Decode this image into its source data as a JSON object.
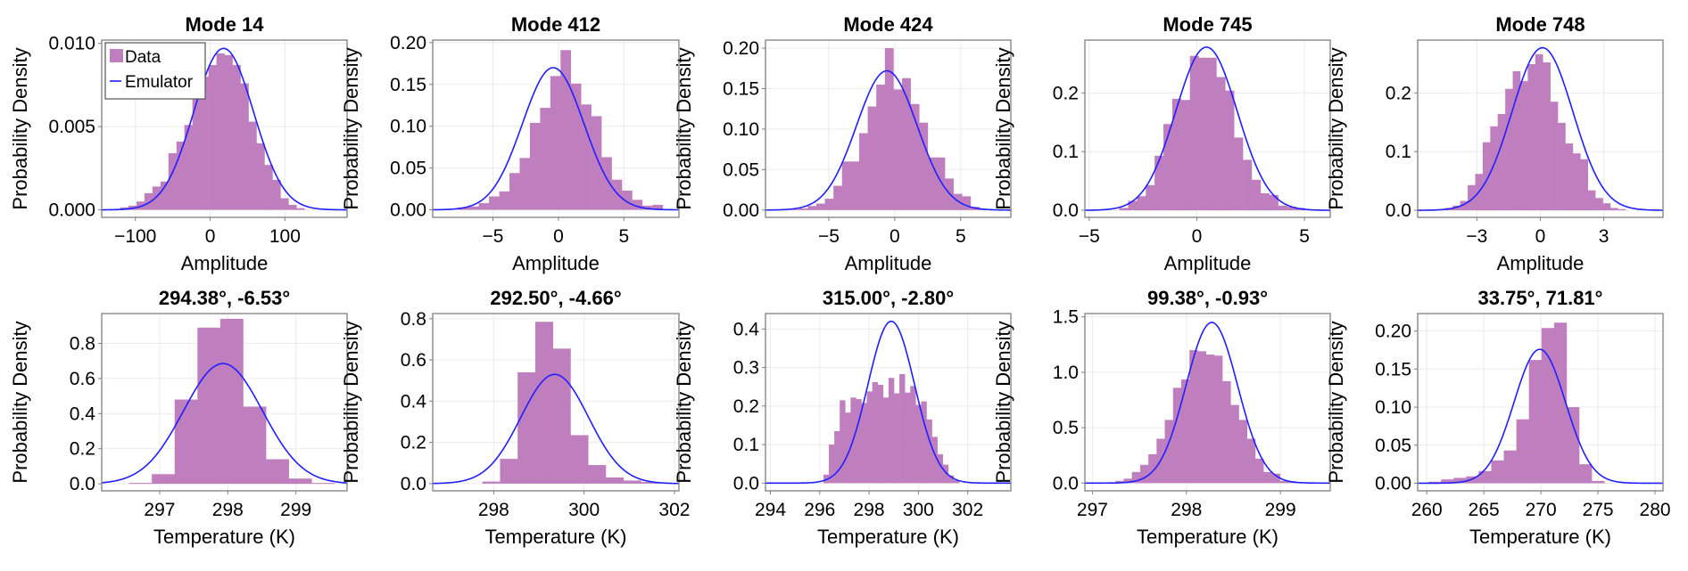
{
  "figure": {
    "colors": {
      "data_fill": "#bf7fbf",
      "emulator_line": "#1f1fff",
      "frame": "#7f7f7f",
      "grid": "#ebebeb"
    },
    "legend": {
      "location": "top-left",
      "panel": 0,
      "entries": [
        {
          "label": "Data",
          "kind": "bar"
        },
        {
          "label": "Emulator",
          "kind": "line"
        }
      ]
    }
  },
  "chart_data": [
    {
      "type": "bar",
      "title": "Mode 14",
      "xlabel": "Amplitude",
      "ylabel": "Probability Density",
      "xlim": [
        -145,
        183
      ],
      "ylim": [
        -0.00045,
        0.0102
      ],
      "grid": true,
      "xticks": [
        -100,
        0,
        100
      ],
      "xtick_labels": [
        "−100",
        "0",
        "100"
      ],
      "yticks": [
        0,
        0.005,
        0.01
      ],
      "ytick_labels": [
        "0.000",
        "0.005",
        "0.010"
      ],
      "histogram": {
        "bin_start": -120,
        "bin_width": 10.7,
        "values": [
          0.00015,
          0.00025,
          0.0005,
          0.001,
          0.0014,
          0.0017,
          0.0034,
          0.0041,
          0.0051,
          0.0067,
          0.008,
          0.0087,
          0.0094,
          0.0093,
          0.0087,
          0.0076,
          0.0053,
          0.004,
          0.0027,
          0.0018,
          0.0007,
          0.0003,
          0.0001
        ]
      },
      "emulator": {
        "mean": 18,
        "std": 40,
        "peak": 0.0097
      }
    },
    {
      "type": "bar",
      "title": "Mode 412",
      "xlabel": "Amplitude",
      "ylabel": "Probability Density",
      "xlim": [
        -9.6,
        9.2
      ],
      "ylim": [
        -0.009,
        0.203
      ],
      "grid": true,
      "xticks": [
        -5,
        0,
        5
      ],
      "xtick_labels": [
        "−5",
        "0",
        "5"
      ],
      "yticks": [
        0,
        0.05,
        0.1,
        0.15,
        0.2
      ],
      "ytick_labels": [
        "0.00",
        "0.05",
        "0.10",
        "0.15",
        "0.20"
      ],
      "histogram": {
        "bin_start": -9.2,
        "bin_width": 0.78,
        "values": [
          0.001,
          0.0,
          0.003,
          0.004,
          0.008,
          0.016,
          0.022,
          0.044,
          0.062,
          0.104,
          0.122,
          0.16,
          0.191,
          0.151,
          0.126,
          0.112,
          0.063,
          0.036,
          0.023,
          0.012,
          0.005,
          0.006,
          0.001
        ]
      },
      "emulator": {
        "mean": -0.4,
        "std": 2.35,
        "peak": 0.17
      }
    },
    {
      "type": "bar",
      "title": "Mode 424",
      "xlabel": "Amplitude",
      "ylabel": "Probability Density",
      "xlim": [
        -9.8,
        8.8
      ],
      "ylim": [
        -0.009,
        0.21
      ],
      "grid": true,
      "xticks": [
        -5,
        0,
        5
      ],
      "xtick_labels": [
        "−5",
        "0",
        "5"
      ],
      "yticks": [
        0,
        0.05,
        0.1,
        0.15,
        0.2
      ],
      "ytick_labels": [
        "0.00",
        "0.05",
        "0.10",
        "0.15",
        "0.20"
      ],
      "histogram": {
        "bin_start": -7.9,
        "bin_width": 0.65,
        "values": [
          0.001,
          0.002,
          0.005,
          0.008,
          0.014,
          0.03,
          0.06,
          0.06,
          0.095,
          0.128,
          0.155,
          0.2,
          0.149,
          0.163,
          0.131,
          0.108,
          0.065,
          0.065,
          0.039,
          0.02,
          0.017,
          0.004,
          0.001
        ]
      },
      "emulator": {
        "mean": -0.6,
        "std": 2.3,
        "peak": 0.172
      }
    },
    {
      "type": "bar",
      "title": "Mode 745",
      "xlabel": "Amplitude",
      "ylabel": "Probability Density",
      "xlim": [
        -5.2,
        6.2
      ],
      "ylim": [
        -0.012,
        0.29
      ],
      "grid": true,
      "xticks": [
        -5,
        0,
        5
      ],
      "xtick_labels": [
        "−5",
        "0",
        "5"
      ],
      "yticks": [
        0,
        0.1,
        0.2
      ],
      "ytick_labels": [
        "0.0",
        "0.1",
        "0.2"
      ],
      "histogram": {
        "bin_start": -3.6,
        "bin_width": 0.41,
        "values": [
          0.004,
          0.016,
          0.024,
          0.043,
          0.093,
          0.147,
          0.19,
          0.188,
          0.263,
          0.26,
          0.26,
          0.227,
          0.204,
          0.124,
          0.086,
          0.052,
          0.029,
          0.026,
          0.008,
          0.006,
          0.004
        ]
      },
      "emulator": {
        "mean": 0.45,
        "std": 1.43,
        "peak": 0.278
      }
    },
    {
      "type": "bar",
      "title": "Mode 748",
      "xlabel": "Amplitude",
      "ylabel": "Probability Density",
      "xlim": [
        -5.8,
        5.8
      ],
      "ylim": [
        -0.012,
        0.29
      ],
      "grid": true,
      "xticks": [
        -3,
        0,
        3
      ],
      "xtick_labels": [
        "−3",
        "0",
        "3"
      ],
      "yticks": [
        0,
        0.1,
        0.2
      ],
      "ytick_labels": [
        "0.0",
        "0.1",
        "0.2"
      ],
      "histogram": {
        "bin_start": -4.5,
        "bin_width": 0.355,
        "values": [
          0.004,
          0.008,
          0.016,
          0.043,
          0.062,
          0.116,
          0.143,
          0.164,
          0.207,
          0.237,
          0.22,
          0.249,
          0.266,
          0.252,
          0.185,
          0.149,
          0.114,
          0.097,
          0.087,
          0.034,
          0.021,
          0.012,
          0.004,
          0.002
        ]
      },
      "emulator": {
        "mean": 0.1,
        "std": 1.44,
        "peak": 0.277
      }
    },
    {
      "type": "bar",
      "title": "294.38°, -6.53°",
      "xlabel": "Temperature (K)",
      "ylabel": "Probability Density",
      "xlim": [
        296.15,
        299.75
      ],
      "ylim": [
        -0.04,
        0.97
      ],
      "grid": true,
      "xticks": [
        297,
        298,
        299
      ],
      "xtick_labels": [
        "297",
        "298",
        "299"
      ],
      "yticks": [
        0,
        0.2,
        0.4,
        0.6,
        0.8
      ],
      "ytick_labels": [
        "0.0",
        "0.2",
        "0.4",
        "0.6",
        "0.8"
      ],
      "histogram": {
        "bin_start": 296.55,
        "bin_width": 0.335,
        "values": [
          0.005,
          0.055,
          0.48,
          0.89,
          0.94,
          0.44,
          0.14,
          0.03,
          0.005
        ]
      },
      "emulator": {
        "mean": 297.93,
        "std": 0.58,
        "peak": 0.685
      }
    },
    {
      "type": "bar",
      "title": "292.50°, -4.66°",
      "xlabel": "Temperature (K)",
      "ylabel": "Probability Density",
      "xlim": [
        296.65,
        302.1
      ],
      "ylim": [
        -0.035,
        0.825
      ],
      "grid": true,
      "xticks": [
        298,
        300,
        302
      ],
      "xtick_labels": [
        "298",
        "300",
        "302"
      ],
      "yticks": [
        0,
        0.2,
        0.4,
        0.6,
        0.8
      ],
      "ytick_labels": [
        "0.0",
        "0.2",
        "0.4",
        "0.6",
        "0.8"
      ],
      "histogram": {
        "bin_start": 297.75,
        "bin_width": 0.39,
        "values": [
          0.01,
          0.12,
          0.54,
          0.785,
          0.655,
          0.235,
          0.09,
          0.03,
          0.015,
          0.008
        ]
      },
      "emulator": {
        "mean": 299.35,
        "std": 0.75,
        "peak": 0.53
      }
    },
    {
      "type": "bar",
      "title": "315.00°, -2.80°",
      "xlabel": "Temperature (K)",
      "ylabel": "Probability Density",
      "xlim": [
        293.8,
        303.75
      ],
      "ylim": [
        -0.02,
        0.44
      ],
      "grid": true,
      "xticks": [
        294,
        296,
        298,
        300,
        302
      ],
      "xtick_labels": [
        "294",
        "296",
        "298",
        "300",
        "302"
      ],
      "yticks": [
        0,
        0.1,
        0.2,
        0.3,
        0.4
      ],
      "ytick_labels": [
        "0.0",
        "0.1",
        "0.2",
        "0.3",
        "0.4"
      ],
      "histogram": {
        "bin_start": 296.15,
        "bin_width": 0.22,
        "values": [
          0.022,
          0.1,
          0.135,
          0.215,
          0.183,
          0.222,
          0.218,
          0.208,
          0.238,
          0.262,
          0.255,
          0.222,
          0.273,
          0.233,
          0.283,
          0.235,
          0.252,
          0.203,
          0.212,
          0.165,
          0.12,
          0.075,
          0.048,
          0.02,
          0.008
        ]
      },
      "emulator": {
        "mean": 298.9,
        "std": 0.95,
        "peak": 0.42
      }
    },
    {
      "type": "bar",
      "title": "99.38°, -0.93°",
      "xlabel": "Temperature (K)",
      "ylabel": "Probability Density",
      "xlim": [
        296.92,
        299.53
      ],
      "ylim": [
        -0.07,
        1.53
      ],
      "grid": true,
      "xticks": [
        297,
        298,
        299
      ],
      "xtick_labels": [
        "297",
        "298",
        "299"
      ],
      "yticks": [
        0,
        0.5,
        1.0,
        1.5
      ],
      "ytick_labels": [
        "0.0",
        "0.5",
        "1.0",
        "1.5"
      ],
      "histogram": {
        "bin_start": 297.07,
        "bin_width": 0.0875,
        "values": [
          0.005,
          0.003,
          0.02,
          0.04,
          0.1,
          0.165,
          0.26,
          0.4,
          0.57,
          0.86,
          0.935,
          1.2,
          1.19,
          1.16,
          1.15,
          0.92,
          0.705,
          0.57,
          0.4,
          0.22,
          0.1,
          0.085,
          0.02,
          0.015,
          0.005
        ]
      },
      "emulator": {
        "mean": 298.27,
        "std": 0.275,
        "peak": 1.45
      }
    },
    {
      "type": "bar",
      "title": "33.75°, 71.81°",
      "xlabel": "Temperature (K)",
      "ylabel": "Probability Density",
      "xlim": [
        259.2,
        280.7
      ],
      "ylim": [
        -0.01,
        0.223
      ],
      "grid": true,
      "xticks": [
        260,
        265,
        270,
        275,
        280
      ],
      "xtick_labels": [
        "260",
        "265",
        "270",
        "275",
        "280"
      ],
      "yticks": [
        0,
        0.05,
        0.1,
        0.15,
        0.2
      ],
      "ytick_labels": [
        "0.00",
        "0.05",
        "0.10",
        "0.15",
        "0.20"
      ],
      "histogram": {
        "bin_start": 260.15,
        "bin_width": 1.1,
        "values": [
          0.002,
          0.005,
          0.007,
          0.009,
          0.016,
          0.03,
          0.043,
          0.084,
          0.162,
          0.204,
          0.211,
          0.1,
          0.025,
          0.003
        ]
      },
      "emulator": {
        "mean": 269.9,
        "std": 2.25,
        "peak": 0.176
      }
    }
  ]
}
